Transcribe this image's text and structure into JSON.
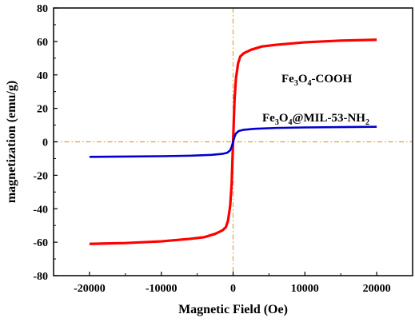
{
  "chart_data": {
    "type": "line",
    "xlabel": "Magnetic Field (Oe)",
    "ylabel": "magnetization (emu/g)",
    "xlim": [
      -25000,
      25000
    ],
    "ylim": [
      -80,
      80
    ],
    "xticks": [
      -20000,
      -10000,
      0,
      10000,
      20000
    ],
    "xtick_labels": [
      "-20000",
      "-10000",
      "0",
      "10000",
      "20000"
    ],
    "yticks": [
      -80,
      -60,
      -40,
      -20,
      0,
      20,
      40,
      60,
      80
    ],
    "ytick_labels": [
      "-80",
      "-60",
      "-40",
      "-20",
      "0",
      "20",
      "40",
      "60",
      "80"
    ],
    "grid": false,
    "reference_lines": [
      {
        "orientation": "horizontal",
        "value": 0,
        "style": "dash-dot",
        "color": "#d9a441"
      },
      {
        "orientation": "vertical",
        "value": 0,
        "style": "dash-dot",
        "color": "#d9a441"
      }
    ],
    "annotations": [
      {
        "parts": [
          [
            "Fe",
            "normal"
          ],
          [
            "3",
            "sub"
          ],
          [
            "O",
            "normal"
          ],
          [
            "4",
            "sub"
          ],
          [
            "-COOH",
            "normal"
          ]
        ],
        "series": "Fe3O4-COOH"
      },
      {
        "parts": [
          [
            "Fe",
            "normal"
          ],
          [
            "3",
            "sub"
          ],
          [
            "O",
            "normal"
          ],
          [
            "4",
            "sub"
          ],
          [
            "@MIL-53-NH",
            "normal"
          ],
          [
            "2",
            "sub"
          ]
        ],
        "series": "Fe3O4@MIL-53-NH2"
      }
    ],
    "series": [
      {
        "name": "Fe3O4-COOH",
        "color": "#ff0000",
        "x": [
          -20000,
          -15000,
          -10000,
          -6000,
          -4000,
          -2500,
          -1500,
          -1000,
          -700,
          -400,
          -200,
          0,
          200,
          400,
          700,
          1000,
          1500,
          2500,
          4000,
          6000,
          10000,
          15000,
          20000
        ],
        "y": [
          -61,
          -60.5,
          -59.5,
          -58,
          -57,
          -55,
          -53,
          -51,
          -47,
          -38,
          -25,
          0,
          25,
          38,
          47,
          51,
          53,
          55,
          57,
          58,
          59.5,
          60.5,
          61
        ]
      },
      {
        "name": "Fe3O4@MIL-53-NH2",
        "color": "#0000cc",
        "x": [
          -20000,
          -15000,
          -10000,
          -6000,
          -3000,
          -1500,
          -800,
          -400,
          -200,
          0,
          200,
          400,
          800,
          1500,
          3000,
          6000,
          10000,
          15000,
          20000
        ],
        "y": [
          -9,
          -8.8,
          -8.6,
          -8.3,
          -7.8,
          -7.2,
          -6.5,
          -5,
          -3,
          0,
          3,
          5,
          6.5,
          7.2,
          7.8,
          8.3,
          8.6,
          8.8,
          9
        ]
      }
    ]
  }
}
